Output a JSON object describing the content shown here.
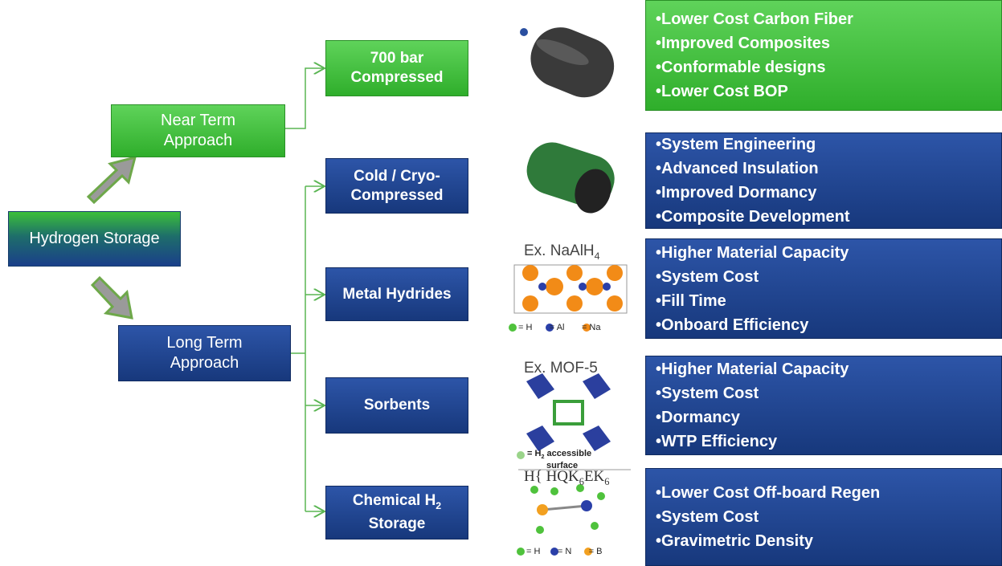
{
  "root": {
    "label": "Hydrogen Storage"
  },
  "approaches": [
    {
      "label": [
        "Near Term",
        "Approach"
      ]
    },
    {
      "label": [
        "Long Term",
        "Approach"
      ]
    }
  ],
  "methods": [
    {
      "label": [
        "700 bar",
        "Compressed"
      ],
      "bullets": [
        "•Lower Cost Carbon Fiber",
        "•Improved Composites",
        "•Conformable designs",
        "•Lower Cost BOP"
      ]
    },
    {
      "label": [
        "Cold / Cryo-",
        "Compressed"
      ],
      "bullets": [
        "•System Engineering",
        "•Advanced Insulation",
        "•Improved Dormancy",
        "•Composite Development"
      ]
    },
    {
      "label": [
        "Metal Hydrides"
      ],
      "bullets": [
        "•Higher Material Capacity",
        "•System Cost",
        "•Fill Time",
        "•Onboard Efficiency"
      ]
    },
    {
      "label": [
        "Sorbents"
      ],
      "bullets": [
        "•Higher Material Capacity",
        "•System Cost",
        "•Dormancy",
        "•WTP Efficiency"
      ]
    },
    {
      "label": [
        "Chemical H",
        "2",
        "Storage"
      ],
      "bullets": [
        "•Lower Cost Off-board Regen",
        "•System Cost",
        "•Gravimetric Density"
      ]
    }
  ],
  "figures": [
    {
      "title": [
        "Ex. NaAlH",
        "4"
      ],
      "legend": [
        "= H",
        "= Al",
        "= Na"
      ]
    },
    {
      "title": [
        "Ex. MOF-5"
      ],
      "legend": [
        "= H",
        "2",
        " accessible",
        "surface"
      ]
    },
    {
      "title": [
        "H{ HQK",
        "6",
        "EK",
        "6"
      ],
      "legend": [
        "= H",
        "= N",
        "= B"
      ]
    }
  ]
}
